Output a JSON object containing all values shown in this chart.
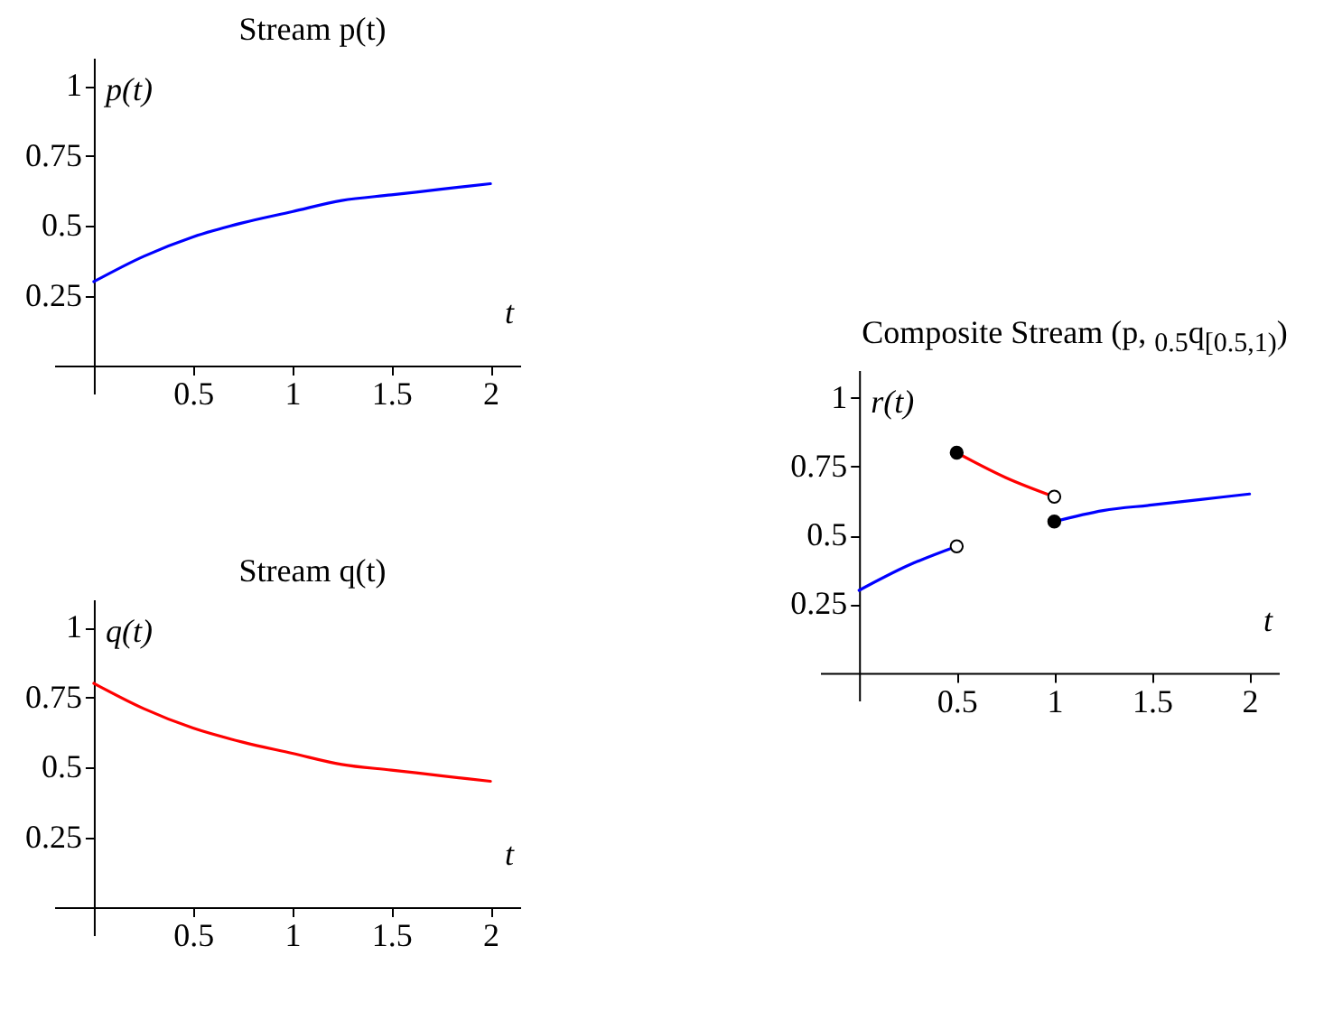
{
  "chart_data": [
    {
      "type": "line",
      "title": "Stream p(t)",
      "xlabel": "t",
      "ylabel": "p(t)",
      "xlim": [
        -0.2,
        2.15
      ],
      "ylim": [
        -0.1,
        1.1
      ],
      "xticks": [
        0.5,
        1,
        1.5,
        2
      ],
      "yticks": [
        0.25,
        0.5,
        0.75,
        1
      ],
      "x": [
        0,
        0.25,
        0.5,
        0.75,
        1,
        1.25,
        1.5,
        1.75,
        2
      ],
      "series": [
        {
          "color": "#0000ff",
          "values": [
            0.3,
            0.39,
            0.46,
            0.51,
            0.55,
            0.59,
            0.61,
            0.63,
            0.65
          ]
        }
      ]
    },
    {
      "type": "line",
      "title": "Stream q(t)",
      "xlabel": "t",
      "ylabel": "q(t)",
      "xlim": [
        -0.2,
        2.15
      ],
      "ylim": [
        -0.1,
        1.1
      ],
      "xticks": [
        0.5,
        1,
        1.5,
        2
      ],
      "yticks": [
        0.25,
        0.5,
        0.75,
        1
      ],
      "x": [
        0,
        0.25,
        0.5,
        0.75,
        1,
        1.25,
        1.5,
        1.75,
        2
      ],
      "series": [
        {
          "color": "#ff0000",
          "values": [
            0.8,
            0.71,
            0.64,
            0.59,
            0.55,
            0.51,
            0.49,
            0.47,
            0.45
          ]
        }
      ]
    },
    {
      "type": "line",
      "title": "Composite Stream (p, $_{0.5}$q$_{[0.5,1)}$)",
      "xlabel": "t",
      "ylabel": "r(t)",
      "xlim": [
        -0.2,
        2.15
      ],
      "ylim": [
        -0.1,
        1.1
      ],
      "xticks": [
        0.5,
        1,
        1.5,
        2
      ],
      "yticks": [
        0.25,
        0.5,
        0.75,
        1
      ],
      "series": [
        {
          "color": "#0000ff",
          "x": [
            0,
            0.25,
            0.5
          ],
          "values": [
            0.3,
            0.39,
            0.46
          ]
        },
        {
          "color": "#ff0000",
          "x": [
            0.5,
            0.75,
            1
          ],
          "values": [
            0.8,
            0.71,
            0.64
          ]
        },
        {
          "color": "#0000ff",
          "x": [
            1,
            1.25,
            1.5,
            1.75,
            2
          ],
          "values": [
            0.55,
            0.59,
            0.61,
            0.63,
            0.65
          ]
        },
        {
          "type": "scatter",
          "marker": "circle",
          "color": "#000000",
          "x": [
            0.5,
            1
          ],
          "values": [
            0.8,
            0.55
          ]
        },
        {
          "type": "scatter",
          "marker": "circle",
          "color": "#ffffff",
          "x": [
            0.5,
            1
          ],
          "values": [
            0.46,
            0.64
          ]
        }
      ]
    }
  ]
}
